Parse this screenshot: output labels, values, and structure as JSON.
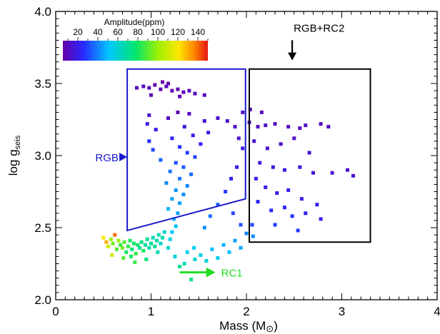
{
  "chart_data": {
    "type": "scatter",
    "title": "",
    "xlabel": "Mass (M",
    "xlabel_symbol": "⊙",
    "xlabel_close": ")",
    "ylabel": "log g",
    "ylabel_sub": "seis",
    "xlim": [
      0,
      4
    ],
    "ylim": [
      2.0,
      4.0
    ],
    "x_ticks": [
      0,
      1,
      2,
      3,
      4
    ],
    "x_tick_labels": [
      "0",
      "1",
      "2",
      "3",
      "4"
    ],
    "y_ticks": [
      2.0,
      2.5,
      3.0,
      3.5,
      4.0
    ],
    "y_tick_labels": [
      "2.0",
      "2.5",
      "3.0",
      "3.5",
      "4.0"
    ],
    "grid": false,
    "colorbar": {
      "label": "Amplitude(ppm)",
      "ticks": [
        20,
        40,
        60,
        80,
        100,
        120,
        140
      ],
      "tick_labels": [
        "20",
        "40",
        "60",
        "80",
        "100",
        "120",
        "140"
      ],
      "range": [
        5,
        150
      ],
      "colormap": "rainbow (purple-blue-cyan-green-yellow-red)"
    },
    "regions": [
      {
        "label": "RGB",
        "color": "#1a1acc",
        "shape": "polygon",
        "vertices": [
          [
            0.75,
            3.6
          ],
          [
            1.99,
            3.6
          ],
          [
            1.99,
            2.7
          ],
          [
            0.75,
            2.48
          ]
        ]
      },
      {
        "label": "RGB+RC2",
        "color": "#000000",
        "shape": "rectangle",
        "vertices": [
          [
            2.03,
            3.6
          ],
          [
            3.3,
            3.6
          ],
          [
            3.3,
            2.4
          ],
          [
            2.03,
            2.4
          ]
        ]
      }
    ],
    "annotations": [
      {
        "text": "RGB",
        "color": "#1a1acc",
        "x": 0.43,
        "y": 2.97,
        "arrow_to": [
          0.72,
          2.99
        ]
      },
      {
        "text": "RGB+RC2",
        "color": "#000000",
        "x": 2.48,
        "y": 3.83,
        "arrow_to": [
          2.48,
          3.68
        ]
      },
      {
        "text": "RC1",
        "color": "#22dd22",
        "x": 1.72,
        "y": 2.19,
        "arrow_from": [
          1.3,
          2.19
        ]
      }
    ],
    "series": [
      {
        "description": "stars colored by oscillation amplitude (ppm)",
        "points": [
          {
            "x": 0.5,
            "y": 2.43,
            "amp": 120
          },
          {
            "x": 0.53,
            "y": 2.4,
            "amp": 130
          },
          {
            "x": 0.55,
            "y": 2.37,
            "amp": 110
          },
          {
            "x": 0.58,
            "y": 2.42,
            "amp": 100
          },
          {
            "x": 0.6,
            "y": 2.39,
            "amp": 95
          },
          {
            "x": 0.62,
            "y": 2.45,
            "amp": 140
          },
          {
            "x": 0.64,
            "y": 2.35,
            "amp": 90
          },
          {
            "x": 0.66,
            "y": 2.41,
            "amp": 100
          },
          {
            "x": 0.68,
            "y": 2.38,
            "amp": 85
          },
          {
            "x": 0.7,
            "y": 2.36,
            "amp": 95
          },
          {
            "x": 0.72,
            "y": 2.4,
            "amp": 90
          },
          {
            "x": 0.74,
            "y": 2.33,
            "amp": 80
          },
          {
            "x": 0.76,
            "y": 2.37,
            "amp": 85
          },
          {
            "x": 0.78,
            "y": 2.41,
            "amp": 80
          },
          {
            "x": 0.8,
            "y": 2.35,
            "amp": 75
          },
          {
            "x": 0.82,
            "y": 2.39,
            "amp": 80
          },
          {
            "x": 0.84,
            "y": 2.32,
            "amp": 85
          },
          {
            "x": 0.86,
            "y": 2.38,
            "amp": 78
          },
          {
            "x": 0.88,
            "y": 2.36,
            "amp": 72
          },
          {
            "x": 0.9,
            "y": 2.4,
            "amp": 75
          },
          {
            "x": 0.92,
            "y": 2.34,
            "amp": 80
          },
          {
            "x": 0.94,
            "y": 2.38,
            "amp": 70
          },
          {
            "x": 0.96,
            "y": 2.42,
            "amp": 72
          },
          {
            "x": 0.98,
            "y": 2.36,
            "amp": 68
          },
          {
            "x": 1.0,
            "y": 2.39,
            "amp": 70
          },
          {
            "x": 1.02,
            "y": 2.43,
            "amp": 65
          },
          {
            "x": 1.04,
            "y": 2.37,
            "amp": 70
          },
          {
            "x": 1.06,
            "y": 2.41,
            "amp": 68
          },
          {
            "x": 1.08,
            "y": 2.45,
            "amp": 65
          },
          {
            "x": 1.1,
            "y": 2.39,
            "amp": 62
          },
          {
            "x": 1.12,
            "y": 2.43,
            "amp": 66
          },
          {
            "x": 1.14,
            "y": 2.47,
            "amp": 60
          },
          {
            "x": 0.59,
            "y": 2.31,
            "amp": 110
          },
          {
            "x": 0.71,
            "y": 2.29,
            "amp": 90
          },
          {
            "x": 0.83,
            "y": 2.26,
            "amp": 85
          },
          {
            "x": 0.95,
            "y": 2.28,
            "amp": 75
          },
          {
            "x": 0.79,
            "y": 2.3,
            "amp": 80
          },
          {
            "x": 1.07,
            "y": 2.33,
            "amp": 65
          },
          {
            "x": 1.18,
            "y": 2.36,
            "amp": 60
          },
          {
            "x": 1.25,
            "y": 2.3,
            "amp": 58
          },
          {
            "x": 1.3,
            "y": 2.23,
            "amp": 70
          },
          {
            "x": 1.35,
            "y": 2.25,
            "amp": 65
          },
          {
            "x": 1.42,
            "y": 2.14,
            "amp": 75
          },
          {
            "x": 1.46,
            "y": 2.28,
            "amp": 60
          },
          {
            "x": 1.52,
            "y": 2.31,
            "amp": 55
          },
          {
            "x": 1.58,
            "y": 2.27,
            "amp": 58
          },
          {
            "x": 1.64,
            "y": 2.35,
            "amp": 50
          },
          {
            "x": 1.7,
            "y": 2.29,
            "amp": 55
          },
          {
            "x": 1.76,
            "y": 2.38,
            "amp": 48
          },
          {
            "x": 1.82,
            "y": 2.33,
            "amp": 50
          },
          {
            "x": 1.88,
            "y": 2.41,
            "amp": 45
          },
          {
            "x": 1.94,
            "y": 2.36,
            "amp": 46
          },
          {
            "x": 2.0,
            "y": 2.46,
            "amp": 40
          },
          {
            "x": 2.07,
            "y": 2.44,
            "amp": 42
          },
          {
            "x": 1.38,
            "y": 2.33,
            "amp": 55
          },
          {
            "x": 1.45,
            "y": 2.36,
            "amp": 52
          },
          {
            "x": 1.2,
            "y": 2.42,
            "amp": 55
          },
          {
            "x": 1.22,
            "y": 2.47,
            "amp": 52
          },
          {
            "x": 1.26,
            "y": 2.51,
            "amp": 50
          },
          {
            "x": 1.24,
            "y": 2.56,
            "amp": 48
          },
          {
            "x": 1.28,
            "y": 2.6,
            "amp": 45
          },
          {
            "x": 1.18,
            "y": 2.63,
            "amp": 50
          },
          {
            "x": 1.3,
            "y": 2.67,
            "amp": 44
          },
          {
            "x": 1.22,
            "y": 2.7,
            "amp": 46
          },
          {
            "x": 1.34,
            "y": 2.73,
            "amp": 42
          },
          {
            "x": 1.26,
            "y": 2.76,
            "amp": 44
          },
          {
            "x": 1.38,
            "y": 2.79,
            "amp": 40
          },
          {
            "x": 1.16,
            "y": 2.81,
            "amp": 42
          },
          {
            "x": 1.3,
            "y": 2.84,
            "amp": 38
          },
          {
            "x": 1.42,
            "y": 2.87,
            "amp": 36
          },
          {
            "x": 1.2,
            "y": 2.89,
            "amp": 38
          },
          {
            "x": 1.34,
            "y": 2.92,
            "amp": 34
          },
          {
            "x": 1.26,
            "y": 2.95,
            "amp": 32
          },
          {
            "x": 1.1,
            "y": 2.97,
            "amp": 34
          },
          {
            "x": 1.46,
            "y": 2.99,
            "amp": 30
          },
          {
            "x": 1.38,
            "y": 3.02,
            "amp": 28
          },
          {
            "x": 1.02,
            "y": 3.04,
            "amp": 30
          },
          {
            "x": 1.3,
            "y": 3.06,
            "amp": 26
          },
          {
            "x": 1.52,
            "y": 3.08,
            "amp": 24
          },
          {
            "x": 0.98,
            "y": 3.1,
            "amp": 26
          },
          {
            "x": 1.22,
            "y": 3.12,
            "amp": 22
          },
          {
            "x": 1.44,
            "y": 3.14,
            "amp": 20
          },
          {
            "x": 1.6,
            "y": 3.16,
            "amp": 18
          },
          {
            "x": 1.05,
            "y": 3.18,
            "amp": 20
          },
          {
            "x": 1.35,
            "y": 3.2,
            "amp": 16
          },
          {
            "x": 0.96,
            "y": 3.22,
            "amp": 18
          },
          {
            "x": 1.56,
            "y": 3.24,
            "amp": 15
          },
          {
            "x": 1.18,
            "y": 3.26,
            "amp": 12
          },
          {
            "x": 1.7,
            "y": 3.26,
            "amp": 14
          },
          {
            "x": 0.98,
            "y": 3.28,
            "amp": 14
          },
          {
            "x": 1.4,
            "y": 3.29,
            "amp": 10
          },
          {
            "x": 1.28,
            "y": 3.3,
            "amp": 8
          },
          {
            "x": 1.8,
            "y": 3.24,
            "amp": 12
          },
          {
            "x": 1.88,
            "y": 3.2,
            "amp": 12
          },
          {
            "x": 1.92,
            "y": 3.12,
            "amp": 14
          },
          {
            "x": 1.96,
            "y": 3.05,
            "amp": 16
          },
          {
            "x": 0.92,
            "y": 3.48,
            "amp": 10
          },
          {
            "x": 0.98,
            "y": 3.47,
            "amp": 8
          },
          {
            "x": 1.04,
            "y": 3.49,
            "amp": 6
          },
          {
            "x": 1.1,
            "y": 3.46,
            "amp": 8
          },
          {
            "x": 1.16,
            "y": 3.48,
            "amp": 10
          },
          {
            "x": 1.22,
            "y": 3.45,
            "amp": 8
          },
          {
            "x": 1.28,
            "y": 3.46,
            "amp": 7
          },
          {
            "x": 1.34,
            "y": 3.44,
            "amp": 9
          },
          {
            "x": 1.4,
            "y": 3.45,
            "amp": 8
          },
          {
            "x": 1.46,
            "y": 3.43,
            "amp": 10
          },
          {
            "x": 1.12,
            "y": 3.51,
            "amp": 6
          },
          {
            "x": 1.18,
            "y": 3.5,
            "amp": 7
          },
          {
            "x": 1.0,
            "y": 3.42,
            "amp": 9
          },
          {
            "x": 1.3,
            "y": 3.41,
            "amp": 8
          },
          {
            "x": 1.56,
            "y": 3.42,
            "amp": 10
          },
          {
            "x": 0.85,
            "y": 3.47,
            "amp": 9
          },
          {
            "x": 2.03,
            "y": 3.23,
            "amp": 12
          },
          {
            "x": 2.12,
            "y": 3.2,
            "amp": 10
          },
          {
            "x": 2.2,
            "y": 3.21,
            "amp": 12
          },
          {
            "x": 2.3,
            "y": 3.22,
            "amp": 10
          },
          {
            "x": 2.44,
            "y": 3.2,
            "amp": 11
          },
          {
            "x": 2.56,
            "y": 3.19,
            "amp": 10
          },
          {
            "x": 2.62,
            "y": 3.21,
            "amp": 12
          },
          {
            "x": 2.78,
            "y": 3.22,
            "amp": 10
          },
          {
            "x": 2.86,
            "y": 3.2,
            "amp": 11
          },
          {
            "x": 2.08,
            "y": 3.1,
            "amp": 14
          },
          {
            "x": 2.22,
            "y": 3.05,
            "amp": 14
          },
          {
            "x": 2.36,
            "y": 3.08,
            "amp": 13
          },
          {
            "x": 2.5,
            "y": 3.12,
            "amp": 12
          },
          {
            "x": 2.66,
            "y": 3.02,
            "amp": 14
          },
          {
            "x": 2.14,
            "y": 2.95,
            "amp": 16
          },
          {
            "x": 2.28,
            "y": 2.92,
            "amp": 16
          },
          {
            "x": 2.4,
            "y": 2.9,
            "amp": 17
          },
          {
            "x": 2.56,
            "y": 2.92,
            "amp": 16
          },
          {
            "x": 2.7,
            "y": 2.88,
            "amp": 15
          },
          {
            "x": 2.9,
            "y": 2.88,
            "amp": 14
          },
          {
            "x": 3.06,
            "y": 2.9,
            "amp": 14
          },
          {
            "x": 3.12,
            "y": 2.86,
            "amp": 14
          },
          {
            "x": 2.1,
            "y": 2.84,
            "amp": 18
          },
          {
            "x": 2.2,
            "y": 2.78,
            "amp": 20
          },
          {
            "x": 2.32,
            "y": 2.74,
            "amp": 20
          },
          {
            "x": 2.44,
            "y": 2.76,
            "amp": 22
          },
          {
            "x": 2.58,
            "y": 2.7,
            "amp": 20
          },
          {
            "x": 2.74,
            "y": 2.66,
            "amp": 22
          },
          {
            "x": 2.12,
            "y": 2.68,
            "amp": 24
          },
          {
            "x": 2.26,
            "y": 2.62,
            "amp": 26
          },
          {
            "x": 2.4,
            "y": 2.64,
            "amp": 24
          },
          {
            "x": 2.48,
            "y": 2.58,
            "amp": 26
          },
          {
            "x": 2.62,
            "y": 2.6,
            "amp": 22
          },
          {
            "x": 2.78,
            "y": 2.56,
            "amp": 20
          },
          {
            "x": 2.06,
            "y": 2.52,
            "amp": 30
          },
          {
            "x": 2.3,
            "y": 2.52,
            "amp": 28
          },
          {
            "x": 2.54,
            "y": 2.48,
            "amp": 28
          },
          {
            "x": 2.04,
            "y": 3.32,
            "amp": 10
          },
          {
            "x": 2.16,
            "y": 3.3,
            "amp": 10
          },
          {
            "x": 1.96,
            "y": 3.3,
            "amp": 12
          },
          {
            "x": 1.9,
            "y": 2.92,
            "amp": 18
          },
          {
            "x": 1.84,
            "y": 2.84,
            "amp": 22
          },
          {
            "x": 1.78,
            "y": 2.75,
            "amp": 28
          },
          {
            "x": 1.7,
            "y": 2.66,
            "amp": 34
          },
          {
            "x": 1.62,
            "y": 2.58,
            "amp": 38
          },
          {
            "x": 1.86,
            "y": 2.6,
            "amp": 30
          },
          {
            "x": 1.94,
            "y": 2.52,
            "amp": 32
          },
          {
            "x": 1.56,
            "y": 2.5,
            "amp": 42
          }
        ]
      }
    ]
  }
}
